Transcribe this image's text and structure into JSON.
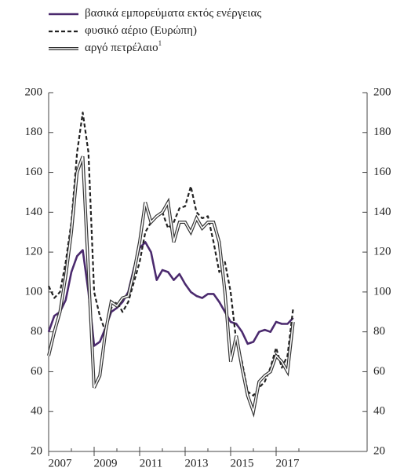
{
  "chart_data": {
    "type": "line",
    "x": [
      2007.0,
      2007.25,
      2007.5,
      2007.75,
      2008.0,
      2008.25,
      2008.5,
      2008.75,
      2009.0,
      2009.25,
      2009.5,
      2009.75,
      2010.0,
      2010.25,
      2010.5,
      2010.75,
      2011.0,
      2011.25,
      2011.5,
      2011.75,
      2012.0,
      2012.25,
      2012.5,
      2012.75,
      2013.0,
      2013.25,
      2013.5,
      2013.75,
      2014.0,
      2014.25,
      2014.5,
      2014.75,
      2015.0,
      2015.25,
      2015.5,
      2015.75,
      2016.0,
      2016.25,
      2016.5,
      2016.75,
      2017.0,
      2017.25,
      2017.5,
      2017.75
    ],
    "series": [
      {
        "name": "βασικά εμπορεύματα εκτός ενέργειας",
        "color": "#4b2a6e",
        "style": "solid",
        "values": [
          80,
          88,
          90,
          96,
          110,
          118,
          121,
          100,
          73,
          75,
          82,
          90,
          92,
          95,
          100,
          112,
          122,
          125,
          120,
          106,
          111,
          110,
          106,
          109,
          104,
          100,
          98,
          97,
          99,
          99,
          95,
          90,
          85,
          84,
          80,
          74,
          75,
          80,
          81,
          80,
          85,
          84,
          84,
          87
        ]
      },
      {
        "name": "φυσικό αέριο (Ευρώπη)",
        "color": "#222222",
        "style": "dashed",
        "values": [
          103,
          97,
          100,
          115,
          135,
          170,
          190,
          170,
          100,
          88,
          80,
          92,
          95,
          90,
          95,
          105,
          115,
          130,
          135,
          138,
          140,
          132,
          135,
          142,
          143,
          153,
          140,
          137,
          138,
          125,
          110,
          115,
          100,
          75,
          65,
          50,
          48,
          52,
          55,
          62,
          72,
          62,
          68,
          92
        ]
      },
      {
        "name": "αργό πετρέλαιο",
        "name_note": "1",
        "color": "#333333",
        "style": "double",
        "values": [
          68,
          80,
          90,
          108,
          130,
          160,
          168,
          110,
          52,
          58,
          80,
          95,
          93,
          97,
          98,
          110,
          125,
          145,
          135,
          138,
          140,
          145,
          125,
          135,
          135,
          130,
          137,
          132,
          135,
          135,
          125,
          100,
          65,
          78,
          62,
          48,
          40,
          55,
          58,
          60,
          68,
          65,
          60,
          85
        ]
      }
    ],
    "xlim": [
      2007,
      2021
    ],
    "xticks": [
      2007,
      2009,
      2011,
      2013,
      2015,
      2017
    ],
    "ylim": [
      20,
      200
    ],
    "yticks": [
      20,
      40,
      60,
      80,
      100,
      120,
      140,
      160,
      180,
      200
    ],
    "y2lim": [
      20,
      200
    ],
    "y2ticks": [
      20,
      40,
      60,
      80,
      100,
      120,
      140,
      160,
      180,
      200
    ]
  }
}
